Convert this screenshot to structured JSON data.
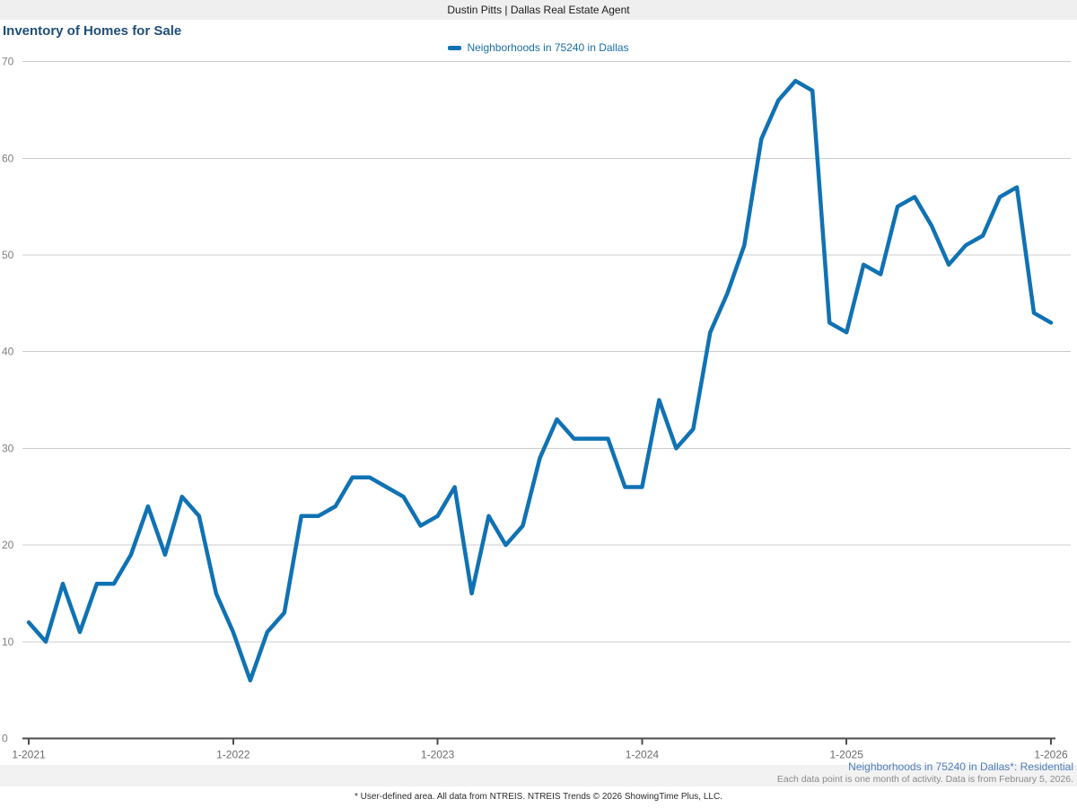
{
  "header": {
    "title": "Dustin Pitts | Dallas Real Estate Agent"
  },
  "chart": {
    "title": "Inventory of Homes for Sale",
    "legend_label": "Neighborhoods in 75240 in Dallas"
  },
  "footer": {
    "series_note": "Neighborhoods in 75240 in Dallas*: Residential",
    "data_note": "Each data point is one month of activity. Data is from February 5, 2026.",
    "disclaimer": "* User-defined area. All data from NTREIS. NTREIS Trends © 2026 ShowingTime Plus, LLC."
  },
  "colors": {
    "line": "#1072b3",
    "title_text": "#1f4e79",
    "legend_text": "#1a6ea6",
    "grid": "#cccccc",
    "axis": "#4d4d4d",
    "y_tick_text": "#7f7f7f",
    "x_tick_text": "#6b6b6b",
    "footer_series_text": "#4e7dba",
    "footer_note_text": "#8a8a8a",
    "header_bg": "#efefef"
  },
  "chart_data": {
    "type": "line",
    "title": "Inventory of Homes for Sale",
    "x_monthly_start": "1-2021",
    "x_monthly_end": "1-2026",
    "x_tick_labels": [
      "1-2021",
      "1-2022",
      "1-2023",
      "1-2024",
      "1-2025",
      "1-2026"
    ],
    "x_tick_month_indices": [
      0,
      12,
      24,
      36,
      48,
      60
    ],
    "y_ticks": [
      0,
      10,
      20,
      30,
      40,
      50,
      60,
      70
    ],
    "ylim": [
      0,
      70
    ],
    "grid": true,
    "legend_position": "top-center",
    "series": [
      {
        "name": "Neighborhoods in 75240 in Dallas",
        "months": [
          "1-2021 .. 1-2026, one value per month"
        ],
        "values": [
          12,
          10,
          16,
          11,
          16,
          16,
          19,
          24,
          19,
          25,
          23,
          15,
          11,
          6,
          11,
          13,
          23,
          23,
          24,
          27,
          27,
          26,
          25,
          22,
          23,
          26,
          15,
          23,
          20,
          22,
          29,
          33,
          31,
          31,
          31,
          26,
          26,
          35,
          30,
          32,
          42,
          46,
          51,
          62,
          66,
          68,
          67,
          43,
          42,
          49,
          48,
          55,
          56,
          53,
          49,
          51,
          52,
          56,
          57,
          44,
          43
        ]
      }
    ]
  }
}
